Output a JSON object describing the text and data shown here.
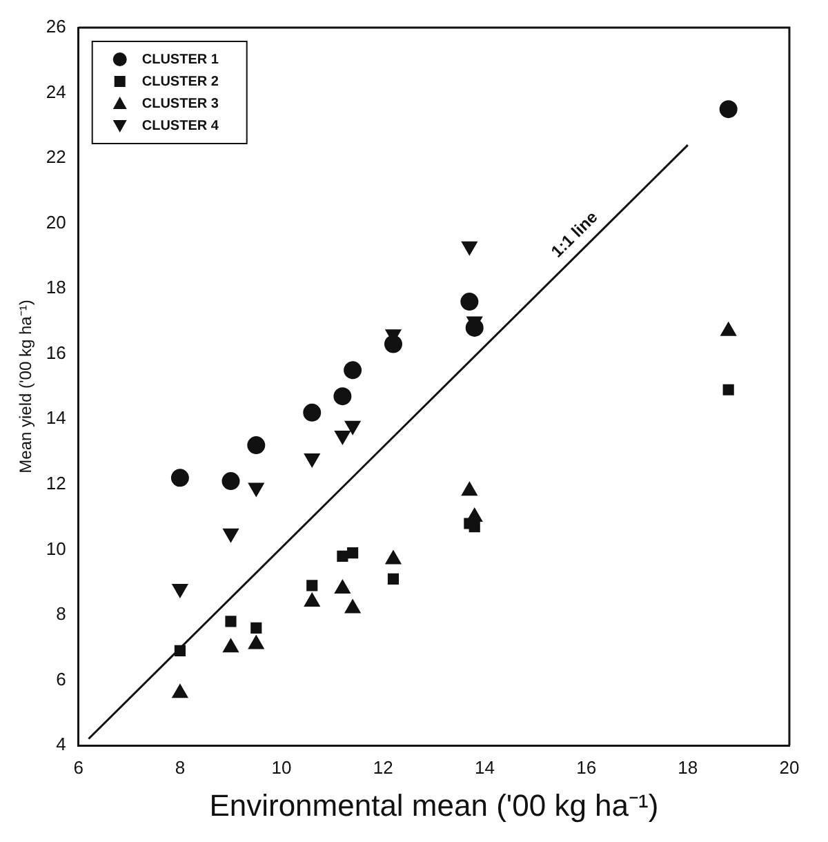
{
  "chart_data": {
    "type": "scatter",
    "xlabel": "Environmental mean ('00 kg ha⁻¹)",
    "ylabel": "Mean yield ('00 kg ha⁻¹)",
    "xlim": [
      6,
      20
    ],
    "xticks": [
      6,
      8,
      10,
      12,
      14,
      16,
      18,
      20
    ],
    "ylim": [
      4,
      26
    ],
    "yticks": [
      4,
      6,
      8,
      10,
      12,
      14,
      16,
      18,
      20,
      22,
      24,
      26
    ],
    "legend": "top left",
    "series": [
      {
        "name": "CLUSTER 1",
        "color": "#111111",
        "marker": "circle",
        "x": [
          8,
          9,
          9.5,
          10.6,
          11.2,
          11.4,
          12.2,
          13.7,
          13.8,
          18.8
        ],
        "values": [
          12.2,
          12.1,
          13.2,
          14.2,
          14.7,
          15.5,
          16.3,
          17.6,
          16.8,
          23.5
        ]
      },
      {
        "name": "CLUSTER 2",
        "color": "#111111",
        "marker": "square",
        "x": [
          8,
          9,
          9.5,
          10.6,
          11.2,
          11.4,
          12.2,
          13.7,
          13.8,
          18.8
        ],
        "values": [
          6.9,
          7.8,
          7.6,
          8.9,
          9.8,
          9.9,
          9.1,
          10.8,
          10.7,
          14.9
        ]
      },
      {
        "name": "CLUSTER 3",
        "color": "#111111",
        "marker": "triangle",
        "x": [
          8,
          9,
          9.5,
          10.6,
          11.2,
          11.4,
          12.2,
          13.7,
          13.8,
          18.8
        ],
        "values": [
          5.6,
          7.0,
          7.1,
          8.4,
          8.8,
          8.2,
          9.7,
          11.8,
          11.0,
          16.7
        ]
      },
      {
        "name": "CLUSTER 4",
        "color": "#111111",
        "marker": "triangle-down",
        "x": [
          8,
          9,
          9.5,
          10.6,
          11.2,
          11.4,
          12.2,
          13.7,
          13.8
        ],
        "values": [
          8.8,
          10.5,
          11.9,
          12.8,
          13.5,
          13.8,
          16.6,
          19.3,
          17.0
        ]
      },
      {
        "type": "line",
        "color": "#111111",
        "marker": "none",
        "x": [
          6.2,
          18.0
        ],
        "values": [
          4.2,
          22.4
        ]
      }
    ],
    "annotations": [
      "1:1 line"
    ]
  }
}
